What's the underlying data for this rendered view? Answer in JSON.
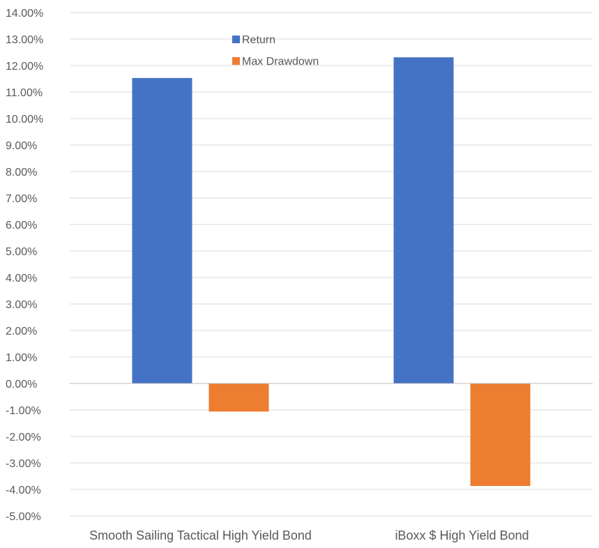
{
  "chart_data": {
    "type": "bar",
    "title": "",
    "xlabel": "",
    "ylabel": "",
    "categories": [
      "Smooth Sailing Tactical High Yield Bond",
      "iBoxx $ High Yield Bond"
    ],
    "series": [
      {
        "name": "Return",
        "color": "#4472C4",
        "values": [
          11.53,
          12.31
        ]
      },
      {
        "name": "Max Drawdown",
        "color": "#ED7D31",
        "values": [
          -1.06,
          -3.87
        ]
      }
    ],
    "ylim": [
      -5,
      14
    ],
    "ytick_step": 1,
    "ytick_labels": [
      "14.00%",
      "13.00%",
      "12.00%",
      "11.00%",
      "10.00%",
      "9.00%",
      "8.00%",
      "7.00%",
      "6.00%",
      "5.00%",
      "4.00%",
      "3.00%",
      "2.00%",
      "1.00%",
      "0.00%",
      "-1.00%",
      "-2.00%",
      "-3.00%",
      "-4.00%",
      "-5.00%"
    ],
    "grid": true,
    "legend_position": "top-center"
  }
}
